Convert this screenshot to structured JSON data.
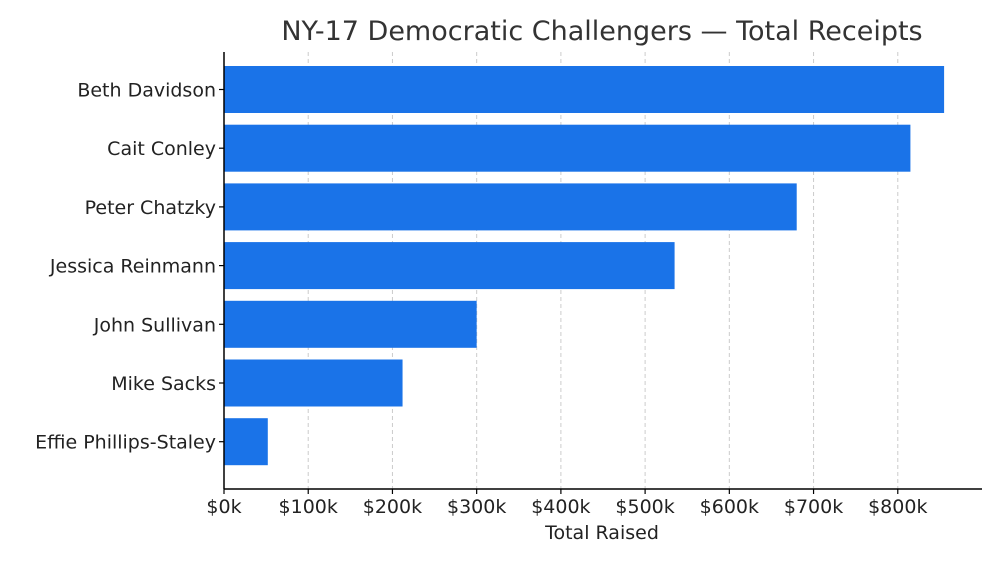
{
  "chart_data": {
    "type": "bar",
    "orientation": "horizontal",
    "title": "NY-17 Democratic Challengers — Total Receipts",
    "xlabel": "Total Raised",
    "ylabel": "",
    "categories": [
      "Beth Davidson",
      "Cait Conley",
      "Peter Chatzky",
      "Jessica Reinmann",
      "John Sullivan",
      "Mike Sacks",
      "Effie Phillips-Staley"
    ],
    "values": [
      855000,
      815000,
      680000,
      535000,
      300000,
      212000,
      52000
    ],
    "xlim": [
      0,
      900000
    ],
    "xticks": [
      0,
      100000,
      200000,
      300000,
      400000,
      500000,
      600000,
      700000,
      800000
    ],
    "xtick_labels": [
      "$0k",
      "$100k",
      "$200k",
      "$300k",
      "$400k",
      "$500k",
      "$600k",
      "$700k",
      "$800k"
    ],
    "grid": "vertical-dashed",
    "bar_color": "#1a73e8",
    "grid_color": "#cccccc",
    "axis_color": "#000000",
    "text_color": "#222222",
    "title_color": "#333333"
  }
}
